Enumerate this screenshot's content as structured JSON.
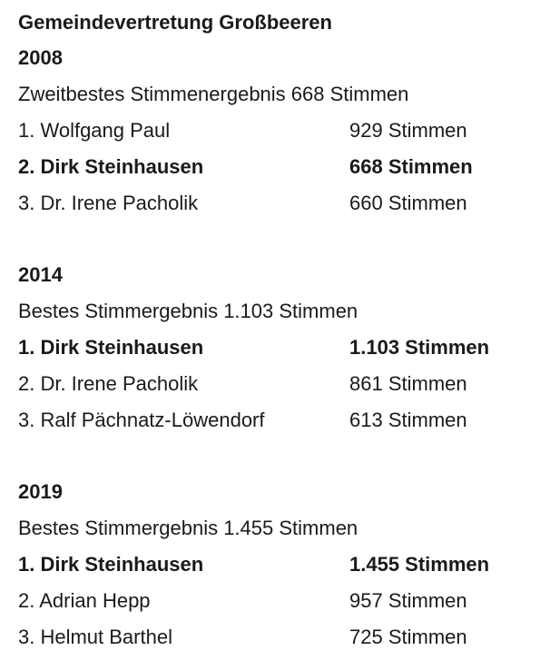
{
  "title": "Gemeindevertretung Großbeeren",
  "sections": [
    {
      "year": "2008",
      "summary": "Zweitbestes Stimmenergebnis 668 Stimmen",
      "rows": [
        {
          "name": "1. Wolfgang Paul",
          "votes": "929 Stimmen"
        },
        {
          "name": "2. Dirk Steinhausen",
          "votes": "668 Stimmen"
        },
        {
          "name": "3. Dr. Irene Pacholik",
          "votes": "660 Stimmen"
        }
      ]
    },
    {
      "year": "2014",
      "summary": "Bestes Stimmergebnis 1.103 Stimmen",
      "rows": [
        {
          "name": "1. Dirk Steinhausen",
          "votes": "1.103 Stimmen"
        },
        {
          "name": "2. Dr. Irene Pacholik",
          "votes": "861 Stimmen"
        },
        {
          "name": "3. Ralf Pächnatz-Löwendorf",
          "votes": "613 Stimmen"
        }
      ]
    },
    {
      "year": "2019",
      "summary": "Bestes Stimmergebnis 1.455 Stimmen",
      "rows": [
        {
          "name": "1. Dirk Steinhausen",
          "votes": "1.455 Stimmen"
        },
        {
          "name": "2. Adrian Hepp",
          "votes": "957 Stimmen"
        },
        {
          "name": "3. Helmut Barthel",
          "votes": "725 Stimmen"
        }
      ]
    }
  ]
}
